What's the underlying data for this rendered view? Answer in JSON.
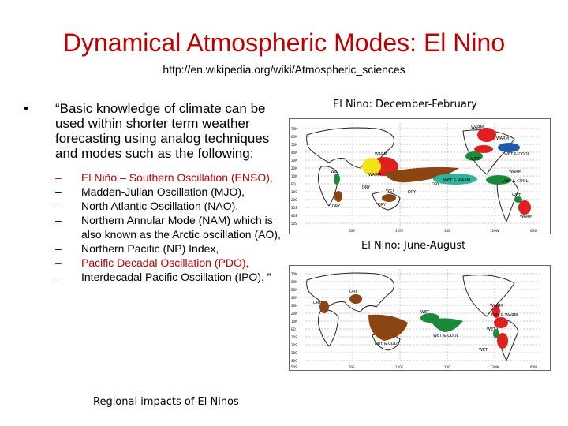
{
  "title": "Dynamical Atmospheric Modes: El Nino",
  "url": "http://en.wikipedia.org/wiki/Atmospheric_sciences",
  "bullet": {
    "marker": "•",
    "text": "“Basic knowledge of climate can be used within shorter term weather forecasting using analog techniques and modes such as the following:"
  },
  "sub_items": [
    {
      "text": "El Niño – Southern Oscillation (ENSO),",
      "color": "#c00000"
    },
    {
      "text": "Madden-Julian Oscillation (MJO),",
      "color": "#000000"
    },
    {
      "text": "North Atlantic Oscillation (NAO),",
      "color": "#000000"
    },
    {
      "text": "Northern Annular Mode (NAM) which is also known as the Arctic oscillation (AO),",
      "color": "#000000"
    },
    {
      "text": "Northern Pacific (NP) Index,",
      "color": "#000000"
    },
    {
      "text": "Pacific Decadal Oscillation (PDO),",
      "color": "#c00000"
    },
    {
      "text": "Interdecadal Pacific Oscillation (IPO). ”",
      "color": "#000000"
    }
  ],
  "captions": {
    "map1": "El Nino: December-February",
    "map2": "El Nino: June-August",
    "bottom": "Regional impacts of El Ninos"
  },
  "map1": {
    "lat_labels": [
      "70N",
      "60N",
      "50N",
      "40N",
      "30N",
      "20N",
      "10N",
      "EQ",
      "10S",
      "20S",
      "30S",
      "40S",
      "50S"
    ],
    "lon_labels": [
      "60E",
      "120E",
      "180",
      "120W",
      "60W"
    ],
    "labels": [
      "WARM",
      "WARM",
      "WET",
      "WET & COOL",
      "WARM",
      "WET",
      "WARM",
      "DRY",
      "WET",
      "DRY",
      "WET & WARM",
      "DRY",
      "WET & COOL",
      "WARM",
      "DRY",
      "WARM",
      "WET",
      "DRY"
    ]
  },
  "map2": {
    "lat_labels": [
      "70N",
      "60N",
      "50N",
      "40N",
      "30N",
      "20N",
      "10N",
      "EQ",
      "10S",
      "20S",
      "30S",
      "40S",
      "50S"
    ],
    "lon_labels": [
      "60E",
      "120E",
      "180",
      "120W",
      "60W"
    ],
    "labels": [
      "DRY",
      "DRY",
      "DRY & COOL",
      "WET",
      "WET & COOL",
      "WARM",
      "DRY & WARM",
      "WET",
      "WET"
    ]
  },
  "colors": {
    "wet": "#1a8a3a",
    "dry": "#8b4513",
    "warm": "#e02020",
    "cool": "#1e5aa8",
    "wet_warm": "#f2e21a",
    "wet_cool": "#2fb39a"
  }
}
